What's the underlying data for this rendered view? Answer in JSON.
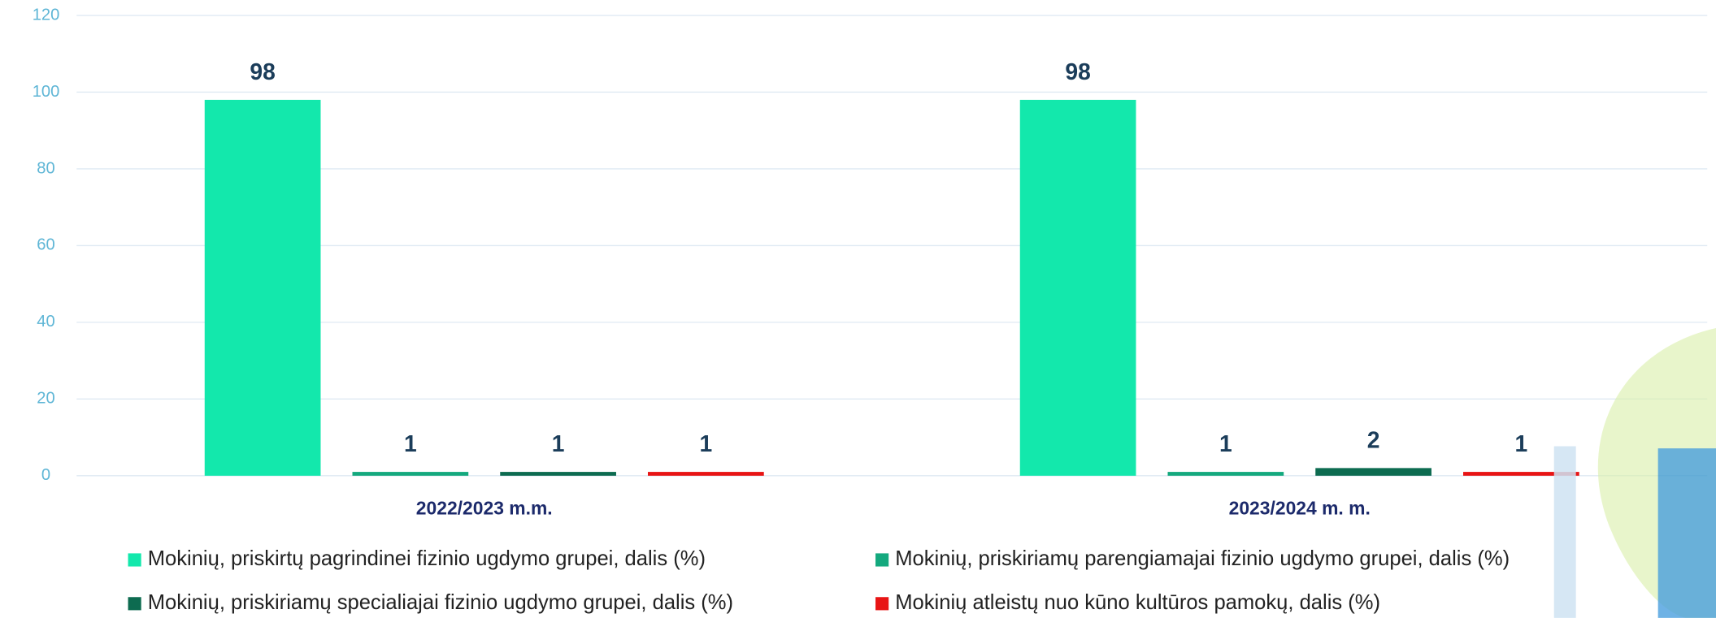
{
  "chart_data": {
    "type": "bar",
    "categories": [
      "2022/2023 m.m.",
      "2023/2024 m. m."
    ],
    "series": [
      {
        "name": "Mokinių,  priskirtų pagrindinei fizinio ugdymo grupei, dalis (%)",
        "color": "#13e8ac",
        "values": [
          98,
          98
        ]
      },
      {
        "name": "Mokinių, priskiriamų parengiamajai fizinio ugdymo grupei, dalis (%)",
        "color": "#14a97e",
        "values": [
          1,
          1
        ]
      },
      {
        "name": "Mokinių, priskiriamų specialiajai fizinio ugdymo grupei, dalis (%)",
        "color": "#0d6b50",
        "values": [
          1,
          2
        ]
      },
      {
        "name": "Mokinių atleistų nuo kūno kultūros pamokų, dalis (%)",
        "color": "#e81414",
        "values": [
          1,
          1
        ]
      }
    ],
    "ylim": [
      0,
      120
    ],
    "yticks": [
      0,
      20,
      40,
      60,
      80,
      100,
      120
    ],
    "grid": true
  }
}
